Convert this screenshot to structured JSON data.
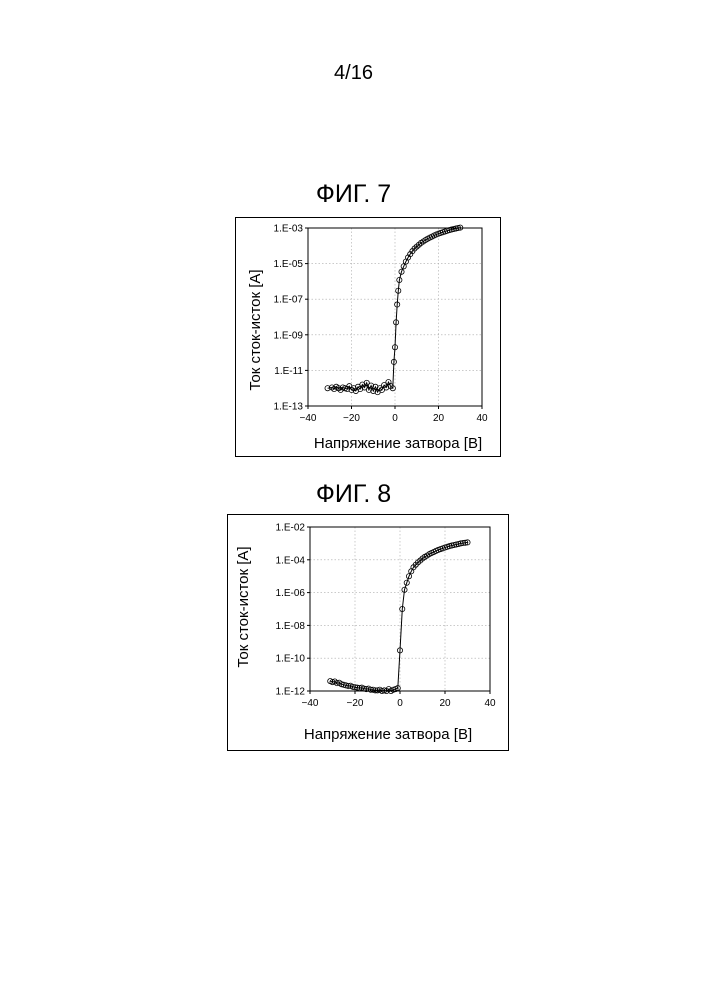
{
  "page": {
    "number": "4/16"
  },
  "chart_data": [
    {
      "type": "scatter",
      "figure_title": "ФИГ. 7",
      "xlabel": "Напряжение затвора [В]",
      "ylabel": "Ток сток-исток [А]",
      "x_scale": "linear",
      "y_scale": "log",
      "xlim": [
        -40,
        40
      ],
      "ylim": [
        1e-13,
        0.001
      ],
      "x_ticks": [
        -40,
        -20,
        0,
        20,
        40
      ],
      "x_tick_labels": [
        "-40",
        "-20",
        "0",
        "20",
        "40"
      ],
      "y_ticks": [
        1e-13,
        1e-11,
        1e-09,
        1e-07,
        1e-05,
        0.001
      ],
      "y_tick_labels": [
        "1.E-13",
        "1.E-11",
        "1.E-09",
        "1.E-07",
        "1.E-05",
        "1.E-03"
      ],
      "grid": true,
      "marker": "open-circle",
      "fit_line": true,
      "x": [
        -31,
        -29,
        -28,
        -27,
        -26,
        -25,
        -24,
        -23,
        -22,
        -21,
        -20,
        -19,
        -18,
        -17,
        -16,
        -15,
        -14,
        -13,
        -12,
        -11,
        -10,
        -9,
        -8,
        -7,
        -6,
        -5,
        -4,
        -3,
        -2,
        -1,
        -0.5,
        0,
        0.5,
        1,
        1.5,
        2,
        3,
        4,
        5,
        6,
        7,
        8,
        9,
        10,
        11,
        12,
        13,
        14,
        15,
        16,
        17,
        18,
        19,
        20,
        21,
        22,
        23,
        24,
        25,
        26,
        27,
        28,
        29,
        30
      ],
      "y": [
        1e-12,
        1.1e-12,
        9e-13,
        1.2e-12,
        1e-12,
        8e-13,
        1.1e-12,
        1e-12,
        9e-13,
        1.3e-12,
        8e-13,
        1e-12,
        7e-13,
        1.2e-12,
        9e-13,
        1.6e-12,
        1.1e-12,
        2e-12,
        8e-13,
        1.4e-12,
        7e-13,
        1.2e-12,
        6e-13,
        1e-12,
        8e-13,
        1.5e-12,
        1.1e-12,
        2.2e-12,
        1.3e-12,
        1e-12,
        3e-11,
        2e-10,
        5e-09,
        5e-08,
        3e-07,
        1.2e-06,
        3.5e-06,
        7e-06,
        1.3e-05,
        2.2e-05,
        3.4e-05,
        5e-05,
        7e-05,
        9e-05,
        0.000115,
        0.000145,
        0.000175,
        0.00021,
        0.00025,
        0.00029,
        0.00033,
        0.00038,
        0.00043,
        0.00048,
        0.00053,
        0.00058,
        0.00064,
        0.0007,
        0.00076,
        0.00082,
        0.00088,
        0.00094,
        0.001,
        0.00105
      ]
    },
    {
      "type": "scatter",
      "figure_title": "ФИГ. 8",
      "xlabel": "Напряжение затвора [В]",
      "ylabel": "Ток сток-исток [А]",
      "x_scale": "linear",
      "y_scale": "log",
      "xlim": [
        -40,
        40
      ],
      "ylim": [
        1e-12,
        0.01
      ],
      "x_ticks": [
        -40,
        -20,
        0,
        20,
        40
      ],
      "x_tick_labels": [
        "-40",
        "-20",
        "0",
        "20",
        "40"
      ],
      "y_ticks": [
        1e-12,
        1e-10,
        1e-08,
        1e-06,
        0.0001,
        0.01
      ],
      "y_tick_labels": [
        "1.E-12",
        "1.E-10",
        "1.E-08",
        "1.E-06",
        "1.E-04",
        "1.E-02"
      ],
      "grid": true,
      "marker": "open-circle",
      "fit_line": true,
      "x": [
        -31,
        -30,
        -29,
        -28,
        -27,
        -26,
        -25,
        -24,
        -23,
        -22,
        -21,
        -20,
        -19,
        -18,
        -17,
        -16,
        -15,
        -14,
        -13,
        -12,
        -11,
        -10,
        -9,
        -8,
        -7,
        -6,
        -5,
        -4,
        -3,
        -2,
        -1,
        0,
        1,
        2,
        3,
        4,
        5,
        6,
        7,
        8,
        9,
        10,
        11,
        12,
        13,
        14,
        15,
        16,
        17,
        18,
        19,
        20,
        21,
        22,
        23,
        24,
        25,
        26,
        27,
        28,
        29,
        30
      ],
      "y": [
        4e-12,
        3.5e-12,
        3.8e-12,
        3e-12,
        3.2e-12,
        2.6e-12,
        2.4e-12,
        2.2e-12,
        2e-12,
        2.1e-12,
        1.8e-12,
        1.7e-12,
        1.6e-12,
        1.5e-12,
        1.6e-12,
        1.4e-12,
        1.3e-12,
        1.4e-12,
        1.2e-12,
        1.2e-12,
        1.1e-12,
        1.1e-12,
        1.2e-12,
        1e-12,
        1.1e-12,
        1e-12,
        1.3e-12,
        1e-12,
        1.2e-12,
        1.3e-12,
        1.5e-12,
        3e-10,
        1e-07,
        1.5e-06,
        4e-06,
        1e-05,
        2e-05,
        3.5e-05,
        5e-05,
        7e-05,
        9e-05,
        0.00012,
        0.00015,
        0.00018,
        0.00022,
        0.00026,
        0.0003,
        0.00035,
        0.0004,
        0.00045,
        0.0005,
        0.00056,
        0.00062,
        0.00068,
        0.00074,
        0.0008,
        0.00086,
        0.00092,
        0.001,
        0.00105,
        0.0011,
        0.00115
      ]
    }
  ]
}
